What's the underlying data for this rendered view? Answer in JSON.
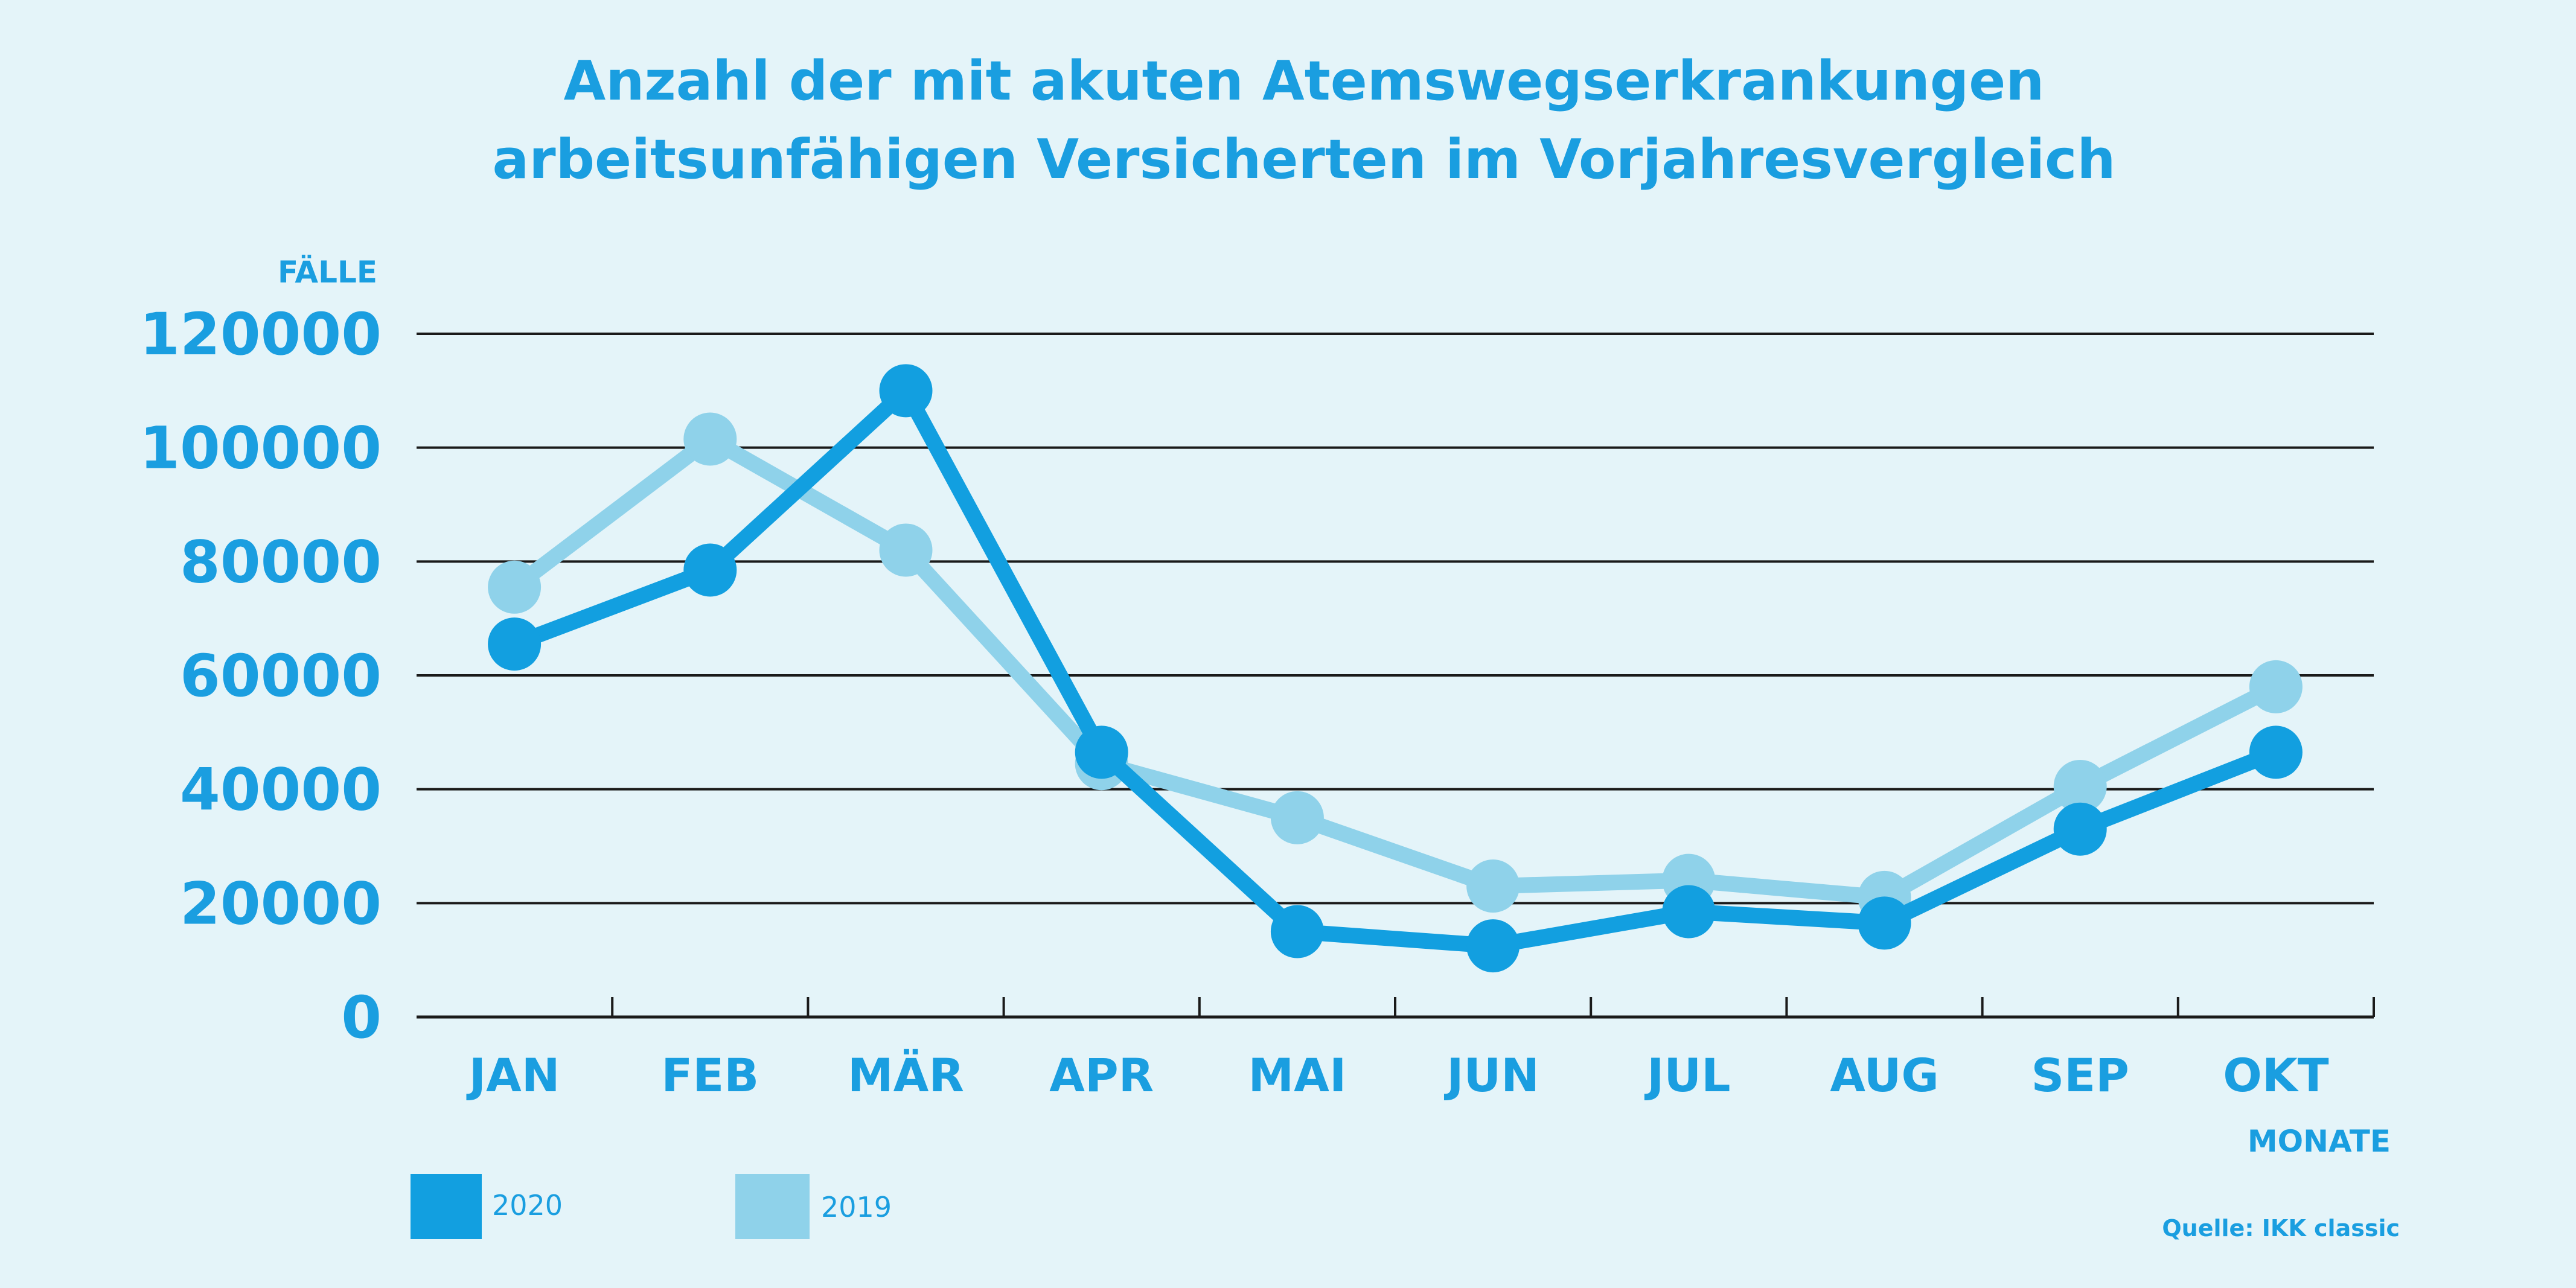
{
  "chart_data": {
    "type": "line",
    "title_lines": [
      "Anzahl der mit akuten Atemswegserkrankungen",
      "arbeitsunfähigen Versicherten im Vorjahresvergleich"
    ],
    "ylabel": "FÄLLE",
    "xlabel": "MONATE",
    "categories": [
      "JAN",
      "FEB",
      "MÄR",
      "APR",
      "MAI",
      "JUN",
      "JUL",
      "AUG",
      "SEP",
      "OKT"
    ],
    "yticks": [
      "0",
      "20000",
      "40000",
      "60000",
      "80000",
      "100000",
      "120000"
    ],
    "ylim": [
      0,
      120000
    ],
    "grid": true,
    "legend_position": "bottom-left",
    "series": [
      {
        "name": "2020",
        "color": "#129fe0",
        "values": [
          65500,
          78500,
          110000,
          46500,
          15000,
          12500,
          18500,
          16500,
          33000,
          46500
        ]
      },
      {
        "name": "2019",
        "color": "#8fd2ea",
        "values": [
          75500,
          101500,
          82000,
          44500,
          35000,
          23000,
          24000,
          21000,
          40500,
          58000
        ]
      }
    ],
    "source": "Quelle: IKK classic"
  }
}
